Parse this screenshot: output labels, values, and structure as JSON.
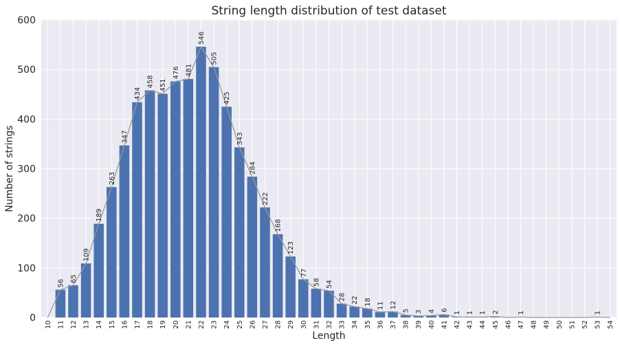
{
  "chart_data": {
    "type": "bar",
    "title": "String length distribution of test dataset",
    "xlabel": "Length",
    "ylabel": "Number of strings",
    "ylim": [
      0,
      600
    ],
    "yticks": [
      0,
      100,
      200,
      300,
      400,
      500,
      600
    ],
    "categories": [
      "10",
      "11",
      "12",
      "13",
      "14",
      "15",
      "16",
      "17",
      "18",
      "19",
      "20",
      "21",
      "22",
      "23",
      "24",
      "25",
      "26",
      "27",
      "28",
      "29",
      "30",
      "31",
      "32",
      "33",
      "34",
      "35",
      "36",
      "37",
      "38",
      "39",
      "40",
      "41",
      "42",
      "43",
      "44",
      "45",
      "46",
      "47",
      "48",
      "49",
      "50",
      "51",
      "52",
      "53",
      "54"
    ],
    "values": [
      0,
      56,
      65,
      109,
      189,
      263,
      347,
      434,
      458,
      451,
      476,
      481,
      546,
      505,
      425,
      343,
      284,
      222,
      168,
      123,
      77,
      58,
      54,
      28,
      22,
      18,
      11,
      12,
      5,
      3,
      4,
      6,
      1,
      1,
      1,
      2,
      0,
      1,
      0,
      0,
      0,
      0,
      0,
      1,
      0
    ],
    "data_labels": {
      "11": "56",
      "12": "65",
      "13": "109",
      "14": "189",
      "15": "263",
      "16": "347",
      "17": "434",
      "18": "458",
      "19": "451",
      "20": "476",
      "21": "481",
      "22": "546",
      "23": "505",
      "24": "425",
      "25": "343",
      "26": "284",
      "27": "222",
      "28": "168",
      "29": "123",
      "30": "77",
      "31": "58",
      "32": "54",
      "33": "28",
      "34": "22",
      "35": "18",
      "36": "11",
      "37": "12",
      "38": "5",
      "39": "3",
      "40": "4",
      "41": "6",
      "42": "1",
      "43": "1",
      "44": "1",
      "45": "2",
      "47": "1",
      "53": "1"
    },
    "series": [
      {
        "values": [
          0,
          56,
          65,
          109,
          189,
          263,
          347,
          434,
          458,
          451,
          476,
          481,
          546,
          505,
          425,
          343,
          284,
          222,
          168,
          123,
          77,
          58,
          54,
          28,
          22,
          18,
          11,
          12,
          5,
          3,
          4,
          6,
          1,
          1,
          1,
          2,
          0,
          1,
          0,
          0,
          0,
          0,
          0,
          1,
          0
        ]
      }
    ],
    "grid": true,
    "colors": {
      "bar": "#4c72b0",
      "line": "#999999",
      "grid": "#ffffff",
      "background": "#eaeaf2"
    }
  }
}
